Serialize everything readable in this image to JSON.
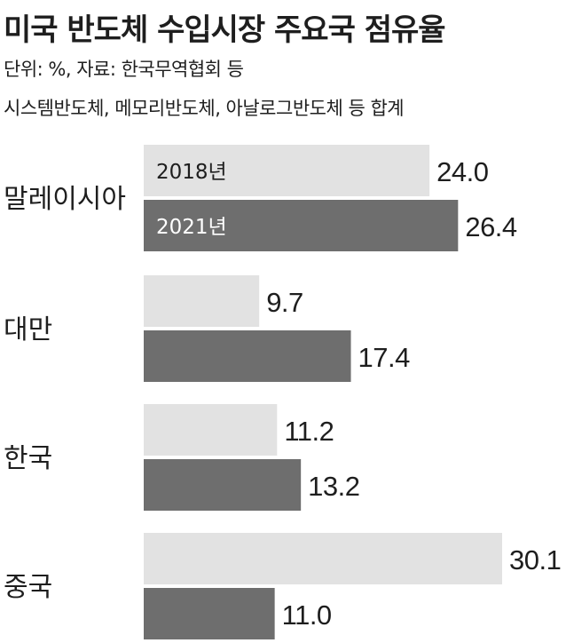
{
  "title": "미국 반도체 수입시장 주요국 점유율",
  "subtitle_line1": "단위: %, 자료: 한국무역협회 등",
  "subtitle_line2": "시스템반도체, 메모리반도체, 아날로그반도체 등 합계",
  "chart_data": {
    "type": "bar",
    "orientation": "horizontal",
    "title": "미국 반도체 수입시장 주요국 점유율",
    "categories": [
      "말레이시아",
      "대만",
      "한국",
      "중국"
    ],
    "series": [
      {
        "name": "2018년",
        "values": [
          24.0,
          9.7,
          11.2,
          30.1
        ],
        "color": "#e2e2e2"
      },
      {
        "name": "2021년",
        "values": [
          26.4,
          17.4,
          13.2,
          11.0
        ],
        "color": "#6e6e6e"
      }
    ],
    "value_labels": [
      [
        "24.0",
        "9.7",
        "11.2",
        "30.1"
      ],
      [
        "26.4",
        "17.4",
        "13.2",
        "11.0"
      ]
    ],
    "xlim": [
      0,
      30.1
    ],
    "grid": false,
    "legend": "inside first category bars"
  }
}
